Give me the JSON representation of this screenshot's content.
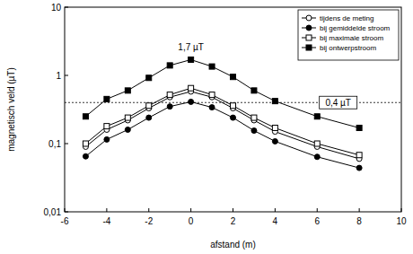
{
  "chart_data": {
    "type": "line",
    "x_label": "afstand (m)",
    "y_label": "magnetisch veld (µT)",
    "x": [
      -5,
      -4,
      -3,
      -2,
      -1,
      0,
      1,
      2,
      3,
      4,
      6,
      8
    ],
    "series": [
      {
        "name": "tijdens de meting",
        "color": "#000000",
        "marker": "open-circle",
        "values": [
          0.09,
          0.16,
          0.22,
          0.33,
          0.48,
          0.58,
          0.48,
          0.33,
          0.22,
          0.15,
          0.09,
          0.06
        ]
      },
      {
        "name": "bij gemiddelde stroom",
        "color": "#000000",
        "marker": "circle",
        "values": [
          0.065,
          0.115,
          0.16,
          0.24,
          0.35,
          0.41,
          0.34,
          0.24,
          0.155,
          0.108,
          0.064,
          0.044
        ]
      },
      {
        "name": "bij maximale stroom",
        "color": "#000000",
        "marker": "open-square",
        "values": [
          0.1,
          0.18,
          0.24,
          0.36,
          0.52,
          0.65,
          0.52,
          0.36,
          0.24,
          0.17,
          0.1,
          0.068
        ]
      },
      {
        "name": "bij ontwerpstroom",
        "color": "#000000",
        "marker": "square",
        "values": [
          0.25,
          0.45,
          0.6,
          0.92,
          1.4,
          1.7,
          1.35,
          0.95,
          0.6,
          0.42,
          0.25,
          0.17
        ]
      }
    ],
    "xlim": [
      -6,
      10
    ],
    "xticks": [
      -6,
      -4,
      -2,
      0,
      2,
      4,
      6,
      8,
      10
    ],
    "ylim": [
      0.01,
      10
    ],
    "yticks": [
      {
        "value": 0.01,
        "label": "0,01"
      },
      {
        "value": 0.1,
        "label": "0,1"
      },
      1,
      10
    ],
    "log": "y",
    "grid": false,
    "legend": "top-right",
    "reference_line": 0.4,
    "annotations": [
      {
        "text": "1,7 µT",
        "x": 0,
        "y": 1.7
      },
      {
        "text": "0,4 µT",
        "x": 7,
        "y": 0.4
      }
    ]
  }
}
